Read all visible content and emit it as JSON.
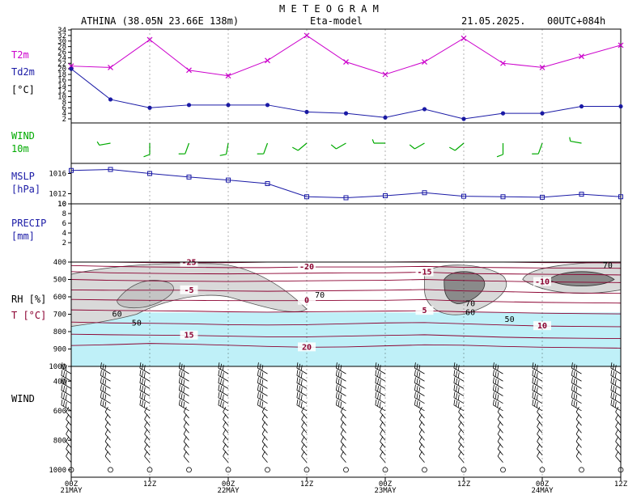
{
  "header": {
    "title": "M E T E O G R A M",
    "station": "ATHINA (38.05N 23.66E  138m)",
    "model": "Eta-model",
    "date": "21.05.2025.",
    "run": "00UTC+084h"
  },
  "panel_labels": {
    "t2m": "T2m",
    "td2m": "Td2m",
    "temp_unit": "[°C]",
    "wind": "WIND",
    "wind_level": "10m",
    "mslp": "MSLP",
    "mslp_unit": "[hPa]",
    "precip": "PRECIP",
    "precip_unit": "[mm]",
    "rh": "RH [%]",
    "t": "T [°C]",
    "upper_wind": "WIND"
  },
  "colors": {
    "t2m": "#cc00cc",
    "td2m": "#1a1aa6",
    "wind": "#00aa00",
    "mslp": "#1a1aa6",
    "label_blue": "#1a1aa6",
    "label_green": "#00aa00",
    "label_magenta": "#cc00cc",
    "temp_contour": "#8b0030",
    "rh_fill": "#d9d9d9",
    "rh_fill_dark": "#8a8a8a",
    "dry_fill": "#bff0f8"
  },
  "x_axis": {
    "ticks": [
      "00Z",
      "12Z",
      "00Z",
      "12Z",
      "00Z",
      "12Z",
      "00Z",
      "12Z"
    ],
    "dates": [
      {
        "index": 0,
        "label": "21MAY"
      },
      {
        "index": 2,
        "label": "22MAY"
      },
      {
        "index": 4,
        "label": "23MAY"
      },
      {
        "index": 6,
        "label": "24MAY"
      }
    ]
  },
  "chart_data": [
    {
      "type": "line",
      "panel": "temperature",
      "x_hours": [
        0,
        6,
        12,
        18,
        24,
        30,
        36,
        42,
        48,
        54,
        60,
        66,
        72,
        78,
        84
      ],
      "series": [
        {
          "name": "T2m",
          "values": [
            21,
            20.5,
            30.5,
            19.5,
            17.5,
            23,
            32,
            22.5,
            18,
            22.5,
            31,
            22,
            20.5,
            24.5,
            28.5
          ]
        },
        {
          "name": "Td2m",
          "values": [
            20,
            9,
            6,
            7,
            7,
            7,
            4.5,
            4,
            2.5,
            5.5,
            2,
            4,
            4,
            6.5,
            6.5
          ]
        }
      ],
      "ylim": [
        2,
        34
      ],
      "yticks": [
        "2",
        "4",
        "6",
        "8",
        "10",
        "12",
        "14",
        "16",
        "18",
        "20",
        "22",
        "24",
        "26",
        "28",
        "30",
        "32",
        "34"
      ]
    },
    {
      "type": "barbs",
      "panel": "wind_10m",
      "x_hours": [
        6,
        12,
        18,
        24,
        30,
        36,
        42,
        48,
        54,
        60,
        66,
        72,
        78
      ],
      "direction_deg": [
        260,
        180,
        200,
        190,
        200,
        230,
        240,
        270,
        240,
        230,
        180,
        200,
        280
      ],
      "speed_kt": [
        5,
        10,
        10,
        10,
        10,
        10,
        10,
        5,
        10,
        10,
        10,
        10,
        5
      ]
    },
    {
      "type": "line",
      "panel": "mslp",
      "x_hours": [
        0,
        6,
        12,
        18,
        24,
        30,
        36,
        42,
        48,
        54,
        60,
        66,
        72,
        78,
        84
      ],
      "series": [
        {
          "name": "MSLP",
          "values": [
            1016.6,
            1016.8,
            1016.0,
            1015.3,
            1014.7,
            1014.0,
            1011.4,
            1011.2,
            1011.6,
            1012.2,
            1011.5,
            1011.4,
            1011.3,
            1011.9,
            1011.4
          ]
        }
      ],
      "ylim": [
        1010,
        1018
      ],
      "yticks": [
        "1016",
        "1012",
        "10"
      ]
    },
    {
      "type": "bar",
      "panel": "precip",
      "x_hours": [],
      "values": [],
      "ylim": [
        0,
        10
      ],
      "yticks": [
        "2",
        "4",
        "6",
        "8",
        "10"
      ]
    },
    {
      "type": "contour",
      "panel": "rh_temperature",
      "y_levels_hpa": [
        "400",
        "500",
        "600",
        "700",
        "800",
        "900",
        "1000"
      ],
      "temperature_isotherms_c": [
        {
          "label": "-25",
          "values": [
            400,
            400,
            403,
            403,
            404,
            400,
            400,
            400,
            400,
            398,
            400,
            400,
            403,
            404,
            405
          ]
        },
        {
          "label": "-20",
          "values": [
            420,
            425,
            428,
            430,
            432,
            432,
            428,
            428,
            428,
            425,
            430,
            432,
            434,
            434,
            436
          ]
        },
        {
          "label": "-15",
          "values": [
            455,
            462,
            465,
            467,
            468,
            466,
            464,
            462,
            462,
            458,
            466,
            468,
            470,
            472,
            474
          ]
        },
        {
          "label": "-10",
          "values": [
            500,
            505,
            508,
            510,
            512,
            510,
            508,
            506,
            505,
            500,
            506,
            510,
            514,
            516,
            518
          ]
        },
        {
          "label": "-5",
          "values": [
            560,
            562,
            562,
            562,
            566,
            568,
            566,
            564,
            562,
            558,
            566,
            570,
            575,
            578,
            580
          ]
        },
        {
          "label": "0",
          "values": [
            615,
            618,
            620,
            620,
            622,
            622,
            622,
            620,
            620,
            616,
            624,
            628,
            632,
            634,
            636
          ]
        },
        {
          "label": "5",
          "values": [
            675,
            678,
            680,
            682,
            686,
            688,
            686,
            684,
            682,
            680,
            686,
            690,
            694,
            696,
            698
          ]
        },
        {
          "label": "10",
          "values": [
            745,
            750,
            752,
            755,
            760,
            762,
            760,
            755,
            750,
            748,
            755,
            762,
            768,
            770,
            772
          ]
        },
        {
          "label": "15",
          "values": [
            815,
            818,
            820,
            822,
            826,
            830,
            830,
            826,
            822,
            818,
            825,
            832,
            836,
            838,
            840
          ]
        },
        {
          "label": "20",
          "values": [
            880,
            875,
            868,
            872,
            878,
            885,
            890,
            888,
            882,
            876,
            878,
            885,
            890,
            892,
            895
          ]
        }
      ],
      "rh_labels": [
        "70",
        "60",
        "50",
        "70",
        "60",
        "50",
        "70"
      ]
    },
    {
      "type": "barbs",
      "panel": "upper_wind",
      "x_hours": [
        0,
        6,
        12,
        18,
        24,
        30,
        36,
        42,
        48,
        54,
        60,
        66,
        72,
        78,
        84
      ],
      "y_levels_hpa": [
        "400",
        "600",
        "800",
        "1000"
      ]
    }
  ]
}
